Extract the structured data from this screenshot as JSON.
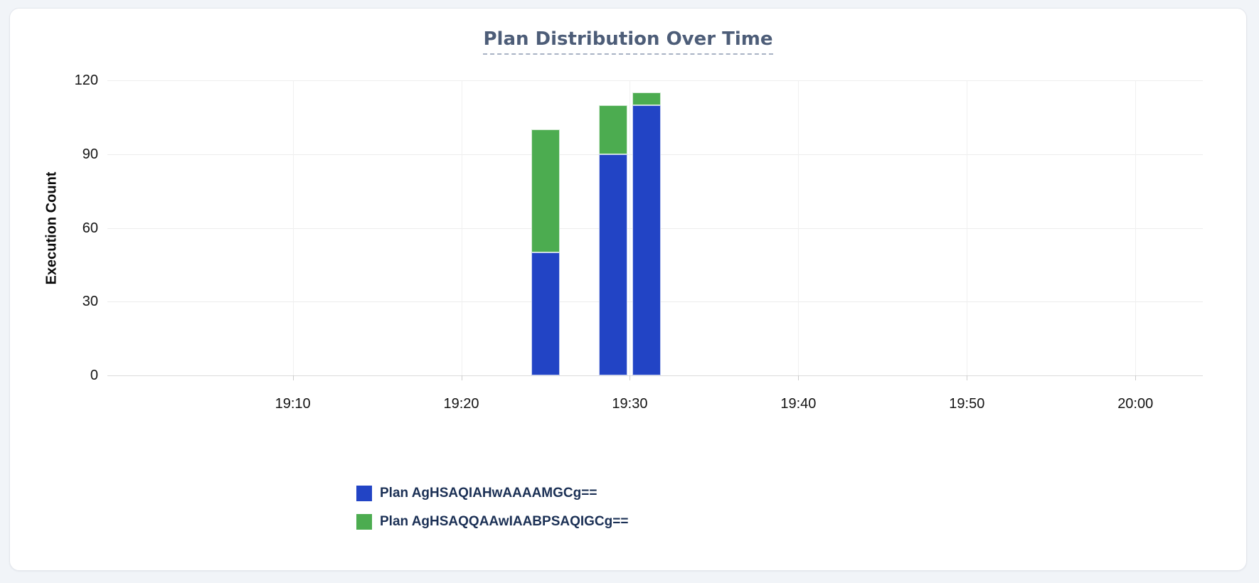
{
  "card": {
    "background": "#ffffff",
    "border_color": "#e3e6ec",
    "page_background": "#f1f4f8"
  },
  "chart_data": {
    "type": "bar",
    "stacked": true,
    "title": "Plan Distribution Over Time",
    "title_color": "#4d5d78",
    "xlabel": "",
    "ylabel": "Execution Count",
    "ylim": [
      0,
      120
    ],
    "yticks": [
      0,
      30,
      60,
      90,
      120
    ],
    "xticks": [
      "19:10",
      "19:20",
      "19:30",
      "19:40",
      "19:50",
      "20:00"
    ],
    "x_range": [
      "18:59",
      "20:04"
    ],
    "grid": true,
    "legend_position": "bottom-left",
    "legend_text_color": "#1b3055",
    "bucket_minutes": 2,
    "x": [
      "19:24",
      "19:28",
      "19:30"
    ],
    "series": [
      {
        "name": "Plan AgHSAQIAHwAAAAMGCg==",
        "color": "#2244c5",
        "values": [
          50,
          90,
          110
        ]
      },
      {
        "name": "Plan AgHSAQQAAwIAABPSAQIGCg==",
        "color": "#4cac50",
        "values": [
          50,
          20,
          5
        ]
      }
    ]
  }
}
